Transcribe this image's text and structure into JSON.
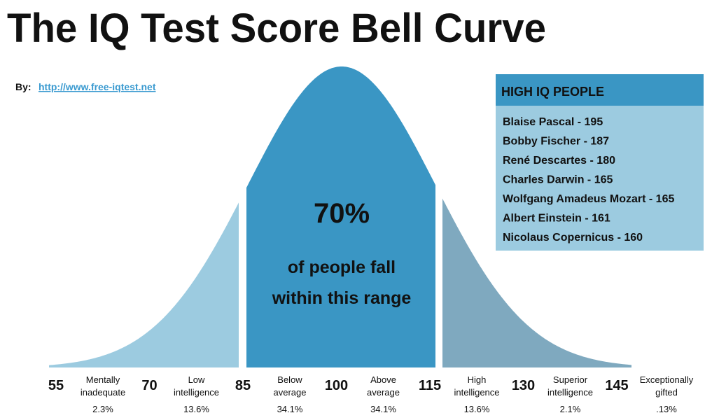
{
  "title": "The IQ Test Score Bell Curve",
  "byline": {
    "label": "By:",
    "link": "http://www.free-iqtest.net"
  },
  "center": {
    "percent": "70%",
    "lines": [
      "of people fall",
      "within this range"
    ]
  },
  "high_iq": {
    "heading": "HIGH IQ PEOPLE",
    "people": [
      "Blaise Pascal - 195",
      "Bobby Fischer - 187",
      "René Descartes - 180",
      "Charles Darwin - 165",
      "Wolfgang Amadeus Mozart - 165",
      "Albert Einstein - 161",
      "Nicolaus Copernicus - 160"
    ]
  },
  "scale": [
    55,
    70,
    85,
    100,
    115,
    130,
    145
  ],
  "ranges": [
    {
      "lines": [
        "Mentally",
        "inadequate"
      ],
      "percent": "2.3%"
    },
    {
      "lines": [
        "Low",
        "intelligence"
      ],
      "percent": "13.6%"
    },
    {
      "lines": [
        "Below",
        "average"
      ],
      "percent": "34.1%"
    },
    {
      "lines": [
        "Above",
        "average"
      ],
      "percent": "34.1%"
    },
    {
      "lines": [
        "High",
        "intelligence"
      ],
      "percent": "13.6%"
    },
    {
      "lines": [
        "Superior",
        "intelligence"
      ],
      "percent": "2.1%"
    },
    {
      "lines": [
        "Exceptionally",
        "gifted"
      ],
      "percent": ".13%"
    }
  ]
}
